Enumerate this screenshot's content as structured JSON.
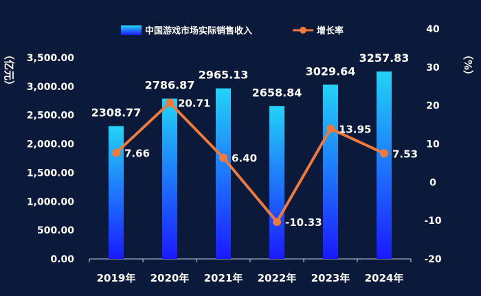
{
  "chart_data": {
    "type": "bar",
    "categories": [
      "2019年",
      "2020年",
      "2021年",
      "2022年",
      "2023年",
      "2024年"
    ],
    "series": [
      {
        "name": "中国游戏市场实际销售收入",
        "type": "bar",
        "axis": "left",
        "values": [
          2308.77,
          2786.87,
          2965.13,
          2658.84,
          3029.64,
          3257.83
        ],
        "labels": [
          "2308.77",
          "2786.87",
          "2965.13",
          "2658.84",
          "3029.64",
          "3257.83"
        ]
      },
      {
        "name": "增长率",
        "type": "line",
        "axis": "right",
        "values": [
          7.66,
          20.71,
          6.4,
          -10.33,
          13.95,
          7.53
        ],
        "labels": [
          "7.66",
          "20.71",
          "6.40",
          "-10.33",
          "13.95",
          "7.53"
        ]
      }
    ],
    "y_left": {
      "label": "（亿元）",
      "range": [
        0,
        4000
      ],
      "ticks": [
        0,
        500,
        1000,
        1500,
        2000,
        2500,
        3000,
        3500
      ],
      "tick_labels": [
        "0.00",
        "500.00",
        "1,000.00",
        "1,500.00",
        "2,000.00",
        "2,500.00",
        "3,000.00",
        "3,500.00"
      ]
    },
    "y_right": {
      "label": "（%）",
      "range": [
        -20,
        40
      ],
      "ticks": [
        -20,
        -10,
        0,
        10,
        20,
        30,
        40
      ],
      "tick_labels": [
        "-20",
        "-10",
        "0",
        "10",
        "20",
        "30",
        "40"
      ]
    },
    "legend_position": "top-center",
    "grid": false,
    "colors": {
      "background": "#0b1a3a",
      "bar_top": "#22d3f7",
      "bar_bottom": "#1a1aff",
      "line": "#f07a3c"
    }
  }
}
